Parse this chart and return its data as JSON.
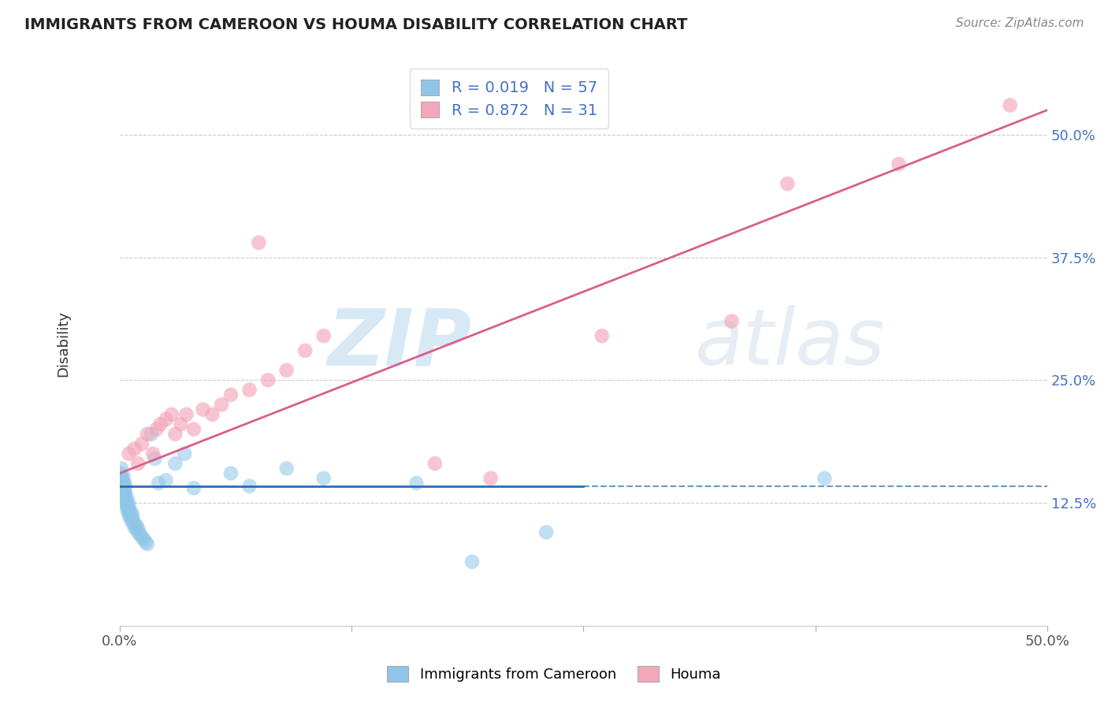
{
  "title": "IMMIGRANTS FROM CAMEROON VS HOUMA DISABILITY CORRELATION CHART",
  "source_text": "Source: ZipAtlas.com",
  "ylabel": "Disability",
  "watermark_zip": "ZIP",
  "watermark_atlas": "atlas",
  "xmin": 0.0,
  "xmax": 0.5,
  "ymin": 0.0,
  "ymax": 0.575,
  "yticks": [
    0.0,
    0.125,
    0.25,
    0.375,
    0.5
  ],
  "ytick_labels": [
    "",
    "12.5%",
    "25.0%",
    "37.5%",
    "50.0%"
  ],
  "xticks": [
    0.0,
    0.125,
    0.25,
    0.375,
    0.5
  ],
  "xtick_labels": [
    "0.0%",
    "",
    "",
    "",
    "50.0%"
  ],
  "blue_R": 0.019,
  "blue_N": 57,
  "pink_R": 0.872,
  "pink_N": 31,
  "blue_color": "#8fc6e8",
  "pink_color": "#f4a7b9",
  "blue_line_color": "#2b6cb0",
  "pink_line_color": "#d95f8a",
  "legend_blue_label": "Immigrants from Cameroon",
  "legend_pink_label": "Houma",
  "blue_scatter_x": [
    0.001,
    0.001,
    0.001,
    0.001,
    0.001,
    0.002,
    0.002,
    0.002,
    0.002,
    0.002,
    0.002,
    0.003,
    0.003,
    0.003,
    0.003,
    0.003,
    0.003,
    0.004,
    0.004,
    0.004,
    0.004,
    0.005,
    0.005,
    0.005,
    0.005,
    0.006,
    0.006,
    0.006,
    0.007,
    0.007,
    0.007,
    0.008,
    0.008,
    0.009,
    0.009,
    0.01,
    0.01,
    0.011,
    0.012,
    0.013,
    0.014,
    0.015,
    0.017,
    0.019,
    0.021,
    0.025,
    0.03,
    0.035,
    0.04,
    0.06,
    0.07,
    0.09,
    0.11,
    0.16,
    0.19,
    0.23,
    0.38
  ],
  "blue_scatter_y": [
    0.14,
    0.145,
    0.15,
    0.155,
    0.16,
    0.13,
    0.135,
    0.14,
    0.145,
    0.148,
    0.152,
    0.125,
    0.128,
    0.132,
    0.136,
    0.14,
    0.144,
    0.118,
    0.122,
    0.126,
    0.13,
    0.112,
    0.116,
    0.12,
    0.124,
    0.108,
    0.112,
    0.116,
    0.105,
    0.109,
    0.113,
    0.1,
    0.104,
    0.098,
    0.102,
    0.095,
    0.099,
    0.093,
    0.09,
    0.088,
    0.085,
    0.083,
    0.195,
    0.17,
    0.145,
    0.148,
    0.165,
    0.175,
    0.14,
    0.155,
    0.142,
    0.16,
    0.15,
    0.145,
    0.065,
    0.095,
    0.15
  ],
  "pink_scatter_x": [
    0.005,
    0.008,
    0.01,
    0.012,
    0.015,
    0.018,
    0.02,
    0.022,
    0.025,
    0.028,
    0.03,
    0.033,
    0.036,
    0.04,
    0.045,
    0.05,
    0.055,
    0.06,
    0.07,
    0.075,
    0.08,
    0.09,
    0.1,
    0.11,
    0.17,
    0.2,
    0.26,
    0.33,
    0.36,
    0.42,
    0.48
  ],
  "pink_scatter_y": [
    0.175,
    0.18,
    0.165,
    0.185,
    0.195,
    0.175,
    0.2,
    0.205,
    0.21,
    0.215,
    0.195,
    0.205,
    0.215,
    0.2,
    0.22,
    0.215,
    0.225,
    0.235,
    0.24,
    0.39,
    0.25,
    0.26,
    0.28,
    0.295,
    0.165,
    0.15,
    0.295,
    0.31,
    0.45,
    0.47,
    0.53
  ],
  "blue_line_x0": 0.0,
  "blue_line_x_solid_end": 0.25,
  "blue_line_x1": 0.5,
  "blue_line_y0": 0.142,
  "blue_line_y1": 0.142,
  "pink_line_x0": 0.0,
  "pink_line_x1": 0.5,
  "pink_line_y0": 0.155,
  "pink_line_y1": 0.525
}
